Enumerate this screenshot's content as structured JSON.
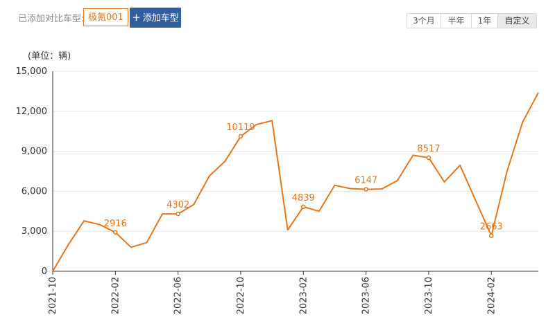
{
  "toolbar": {
    "added_label": "已添加对比车型:",
    "car_chip": "极氪001",
    "add_button_plus": "+",
    "add_button_label": "添加车型",
    "ranges": [
      {
        "label": "3个月",
        "active": false
      },
      {
        "label": "半年",
        "active": false
      },
      {
        "label": "1年",
        "active": false
      },
      {
        "label": "自定义",
        "active": true
      }
    ]
  },
  "chart_data": {
    "type": "line",
    "unit_label": "(单位：辆)",
    "y_ticks": [
      "0",
      "3,000",
      "6,000",
      "9,000",
      "12,000",
      "15,000"
    ],
    "ylim": [
      0,
      15000
    ],
    "x_tick_labels": [
      "2021-10",
      "2022-02",
      "2022-06",
      "2022-10",
      "2023-02",
      "2023-06",
      "2023-10",
      "2024-02"
    ],
    "x_tick_indices": [
      0,
      4,
      8,
      12,
      16,
      20,
      24,
      28
    ],
    "series": [
      {
        "color": "#e8741a",
        "x": [
          "2021-10",
          "2021-11",
          "2021-12",
          "2022-01",
          "2022-02",
          "2022-03",
          "2022-04",
          "2022-05",
          "2022-06",
          "2022-07",
          "2022-08",
          "2022-09",
          "2022-10",
          "2022-11",
          "2022-12",
          "2023-01",
          "2023-02",
          "2023-03",
          "2023-04",
          "2023-05",
          "2023-06",
          "2023-07",
          "2023-08",
          "2023-09",
          "2023-10",
          "2023-11",
          "2023-12",
          "2024-01",
          "2024-02",
          "2024-03",
          "2024-04",
          "2024-05"
        ],
        "values": [
          0,
          2000,
          3780,
          3500,
          2916,
          1800,
          2150,
          4300,
          4302,
          5000,
          7150,
          8250,
          10119,
          11000,
          11300,
          3100,
          4839,
          4500,
          6450,
          6200,
          6147,
          6170,
          6800,
          8700,
          8517,
          6700,
          7950,
          5300,
          2663,
          7500,
          11200,
          13400
        ],
        "data_labels": [
          {
            "index": 4,
            "text": "2916"
          },
          {
            "index": 8,
            "text": "4302"
          },
          {
            "index": 12,
            "text": "10119"
          },
          {
            "index": 16,
            "text": "4839"
          },
          {
            "index": 20,
            "text": "6147"
          },
          {
            "index": 24,
            "text": "8517"
          },
          {
            "index": 28,
            "text": "2663"
          }
        ]
      }
    ],
    "grid": true,
    "legend": "none"
  }
}
